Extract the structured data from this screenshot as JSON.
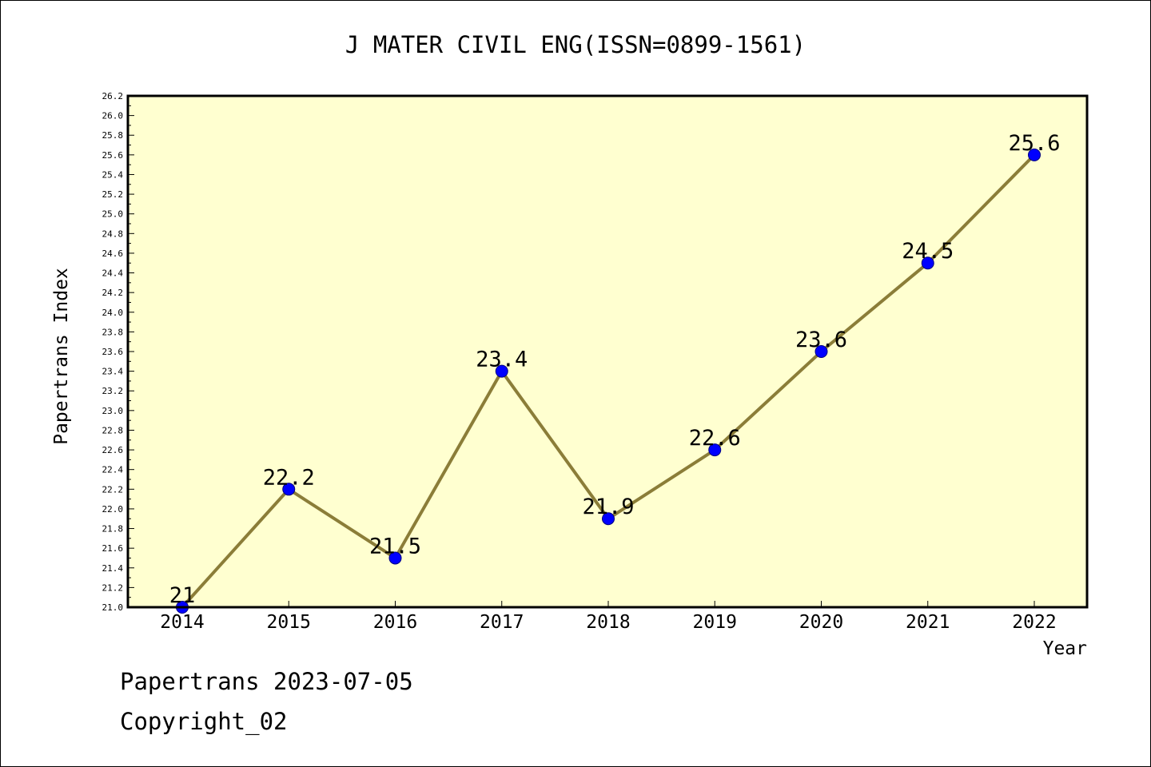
{
  "chart_data": {
    "type": "line",
    "title": "J MATER CIVIL ENG(ISSN=0899-1561)",
    "xlabel": "Year",
    "ylabel": "Papertrans Index",
    "x": [
      "2014",
      "2015",
      "2016",
      "2017",
      "2018",
      "2019",
      "2020",
      "2021",
      "2022"
    ],
    "series": [
      {
        "values": [
          21,
          22.2,
          21.5,
          23.4,
          21.9,
          22.6,
          23.6,
          24.5,
          25.6
        ],
        "data_labels": [
          "21",
          "22.2",
          "21.5",
          "23.4",
          "21.9",
          "22.6",
          "23.6",
          "24.5",
          "25.6"
        ]
      }
    ],
    "ylim": [
      21.0,
      26.2
    ],
    "y_ticks": [
      "21.0",
      "21.2",
      "21.4",
      "21.6",
      "21.8",
      "22.0",
      "22.2",
      "22.4",
      "22.6",
      "22.8",
      "23.0",
      "23.2",
      "23.4",
      "23.6",
      "23.8",
      "24.0",
      "24.2",
      "24.4",
      "24.6",
      "24.8",
      "25.0",
      "25.2",
      "25.4",
      "25.6",
      "25.8",
      "26.0",
      "26.2"
    ],
    "grid": false,
    "colors": {
      "plot_background": "#ffffd0",
      "line": "#8b7d38",
      "marker": "#0000ff",
      "axes": "#000000"
    }
  },
  "footer": {
    "line1": "Papertrans 2023-07-05",
    "line2": "Copyright_02"
  }
}
